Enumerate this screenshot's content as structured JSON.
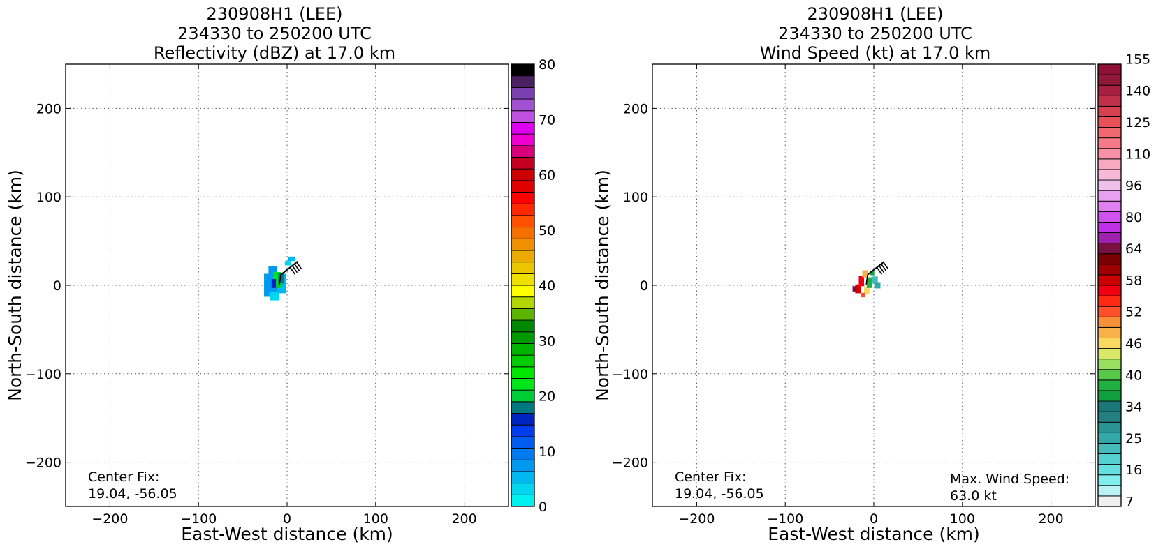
{
  "chart_data": [
    {
      "type": "heatmap",
      "title_lines": [
        "230908H1 (LEE)",
        "234330 to 250200 UTC",
        "Reflectivity (dBZ) at 17.0 km"
      ],
      "xlabel": "East-West distance (km)",
      "ylabel": "North-South distance (km)",
      "xlim": [
        -250,
        250
      ],
      "ylim": [
        -250,
        250
      ],
      "xticks": [
        -200,
        -100,
        0,
        100,
        200
      ],
      "yticks": [
        -200,
        -100,
        0,
        100,
        200
      ],
      "xtick_labels": [
        "−200",
        "−100",
        "0",
        "100",
        "200"
      ],
      "ytick_labels": [
        "−200",
        "−100",
        "0",
        "100",
        "200"
      ],
      "grid": true,
      "annotations": [
        {
          "id": "center_fix",
          "lines": [
            "Center Fix:",
            "19.04, -56.05"
          ],
          "position": "bottom-left"
        }
      ],
      "colorbar": {
        "min": 0,
        "max": 80,
        "tick_values": [
          0,
          10,
          20,
          30,
          40,
          50,
          60,
          70,
          80
        ],
        "tick_labels": [
          "0",
          "10",
          "20",
          "30",
          "40",
          "50",
          "60",
          "70",
          "80"
        ],
        "colors": [
          "#00efef",
          "#00d6ef",
          "#00b8ef",
          "#0099ef",
          "#007aef",
          "#005cef",
          "#003def",
          "#0024c0",
          "#00787f",
          "#00cc33",
          "#00e61a",
          "#00e600",
          "#00cc00",
          "#00b300",
          "#009900",
          "#008800",
          "#5cb300",
          "#b3d600",
          "#ffff00",
          "#f0e000",
          "#eac600",
          "#eaaa00",
          "#f09000",
          "#f47000",
          "#ff5000",
          "#ff2800",
          "#ff0000",
          "#e00000",
          "#cc0000",
          "#c40020",
          "#d8007a",
          "#f000d0",
          "#e000f0",
          "#c050e0",
          "#a050d0",
          "#7a40b0",
          "#4a2060",
          "#000000"
        ]
      },
      "storm_cells": [
        {
          "x": -18,
          "y": 0,
          "w": 16,
          "h": 26,
          "value": 8
        },
        {
          "x": -16,
          "y": 17,
          "w": 10,
          "h": 10,
          "value": 8
        },
        {
          "x": -14,
          "y": -12,
          "w": 10,
          "h": 10,
          "value": 4
        },
        {
          "x": -6,
          "y": 2,
          "w": 10,
          "h": 22,
          "value": 6
        },
        {
          "x": 5,
          "y": 30,
          "w": 8,
          "h": 5,
          "value": 5
        },
        {
          "x": 1,
          "y": 25,
          "w": 7,
          "h": 5,
          "value": 4
        },
        {
          "x": -11,
          "y": 7,
          "w": 9,
          "h": 16,
          "value": 22
        },
        {
          "x": -7,
          "y": 8,
          "w": 6,
          "h": 12,
          "value": 18
        },
        {
          "x": -15,
          "y": 2,
          "w": 5,
          "h": 10,
          "value": 15
        },
        {
          "x": -9,
          "y": 0,
          "w": 7,
          "h": 6,
          "value": 20
        }
      ]
    },
    {
      "type": "heatmap",
      "title_lines": [
        "230908H1 (LEE)",
        "234330 to 250200 UTC",
        "Wind Speed (kt) at 17.0 km"
      ],
      "xlabel": "East-West distance (km)",
      "ylabel": "North-South distance (km)",
      "xlim": [
        -250,
        250
      ],
      "ylim": [
        -250,
        250
      ],
      "xticks": [
        -200,
        -100,
        0,
        100,
        200
      ],
      "yticks": [
        -200,
        -100,
        0,
        100,
        200
      ],
      "xtick_labels": [
        "−200",
        "−100",
        "0",
        "100",
        "200"
      ],
      "ytick_labels": [
        "−200",
        "−100",
        "0",
        "100",
        "200"
      ],
      "grid": true,
      "annotations": [
        {
          "id": "center_fix",
          "lines": [
            "Center Fix:",
            "19.04, -56.05"
          ],
          "position": "bottom-left"
        },
        {
          "id": "max_wind",
          "lines": [
            "Max. Wind Speed:",
            "63.0 kt"
          ],
          "position": "bottom-right"
        }
      ],
      "colorbar": {
        "tick_labels": [
          "7",
          "16",
          "25",
          "34",
          "40",
          "46",
          "52",
          "58",
          "64",
          "80",
          "96",
          "110",
          "125",
          "140",
          "155"
        ],
        "tick_bins": [
          0,
          3,
          6,
          9,
          12,
          15,
          18,
          21,
          24,
          27,
          30,
          33,
          36,
          39,
          42
        ],
        "colors": [
          "#f0f0f0",
          "#b8f2f2",
          "#80eeee",
          "#66e0e0",
          "#55d0d0",
          "#44baba",
          "#34a8a8",
          "#2a9494",
          "#248080",
          "#1a7878",
          "#10a040",
          "#20b040",
          "#58c848",
          "#9ae060",
          "#d8e868",
          "#f8d860",
          "#f8b048",
          "#f89038",
          "#ff5028",
          "#ff2810",
          "#f00010",
          "#cc0000",
          "#a00000",
          "#780000",
          "#7a1040",
          "#a020b0",
          "#c030e8",
          "#d050f0",
          "#e080f0",
          "#e8a0f0",
          "#f0c0ec",
          "#f8b8d8",
          "#f8a8c0",
          "#f890a8",
          "#f87a88",
          "#f06870",
          "#e85058",
          "#d84050",
          "#c03048",
          "#a82040",
          "#901838",
          "#901038"
        ]
      },
      "storm_cells": [
        {
          "x": -18,
          "y": -4,
          "w": 6,
          "h": 10,
          "value": 58
        },
        {
          "x": -22,
          "y": -4,
          "w": 4,
          "h": 6,
          "value": 64
        },
        {
          "x": -14,
          "y": 5,
          "w": 6,
          "h": 12,
          "value": 55
        },
        {
          "x": -10,
          "y": 13,
          "w": 6,
          "h": 8,
          "value": 48
        },
        {
          "x": -8,
          "y": -6,
          "w": 6,
          "h": 8,
          "value": 45
        },
        {
          "x": -5,
          "y": 3,
          "w": 6,
          "h": 12,
          "value": 38
        },
        {
          "x": 1,
          "y": 6,
          "w": 7,
          "h": 8,
          "value": 22
        },
        {
          "x": 4,
          "y": 0,
          "w": 7,
          "h": 7,
          "value": 26
        },
        {
          "x": -2,
          "y": 14,
          "w": 5,
          "h": 5,
          "value": 35
        },
        {
          "x": -12,
          "y": -11,
          "w": 5,
          "h": 5,
          "value": 52
        }
      ]
    }
  ]
}
